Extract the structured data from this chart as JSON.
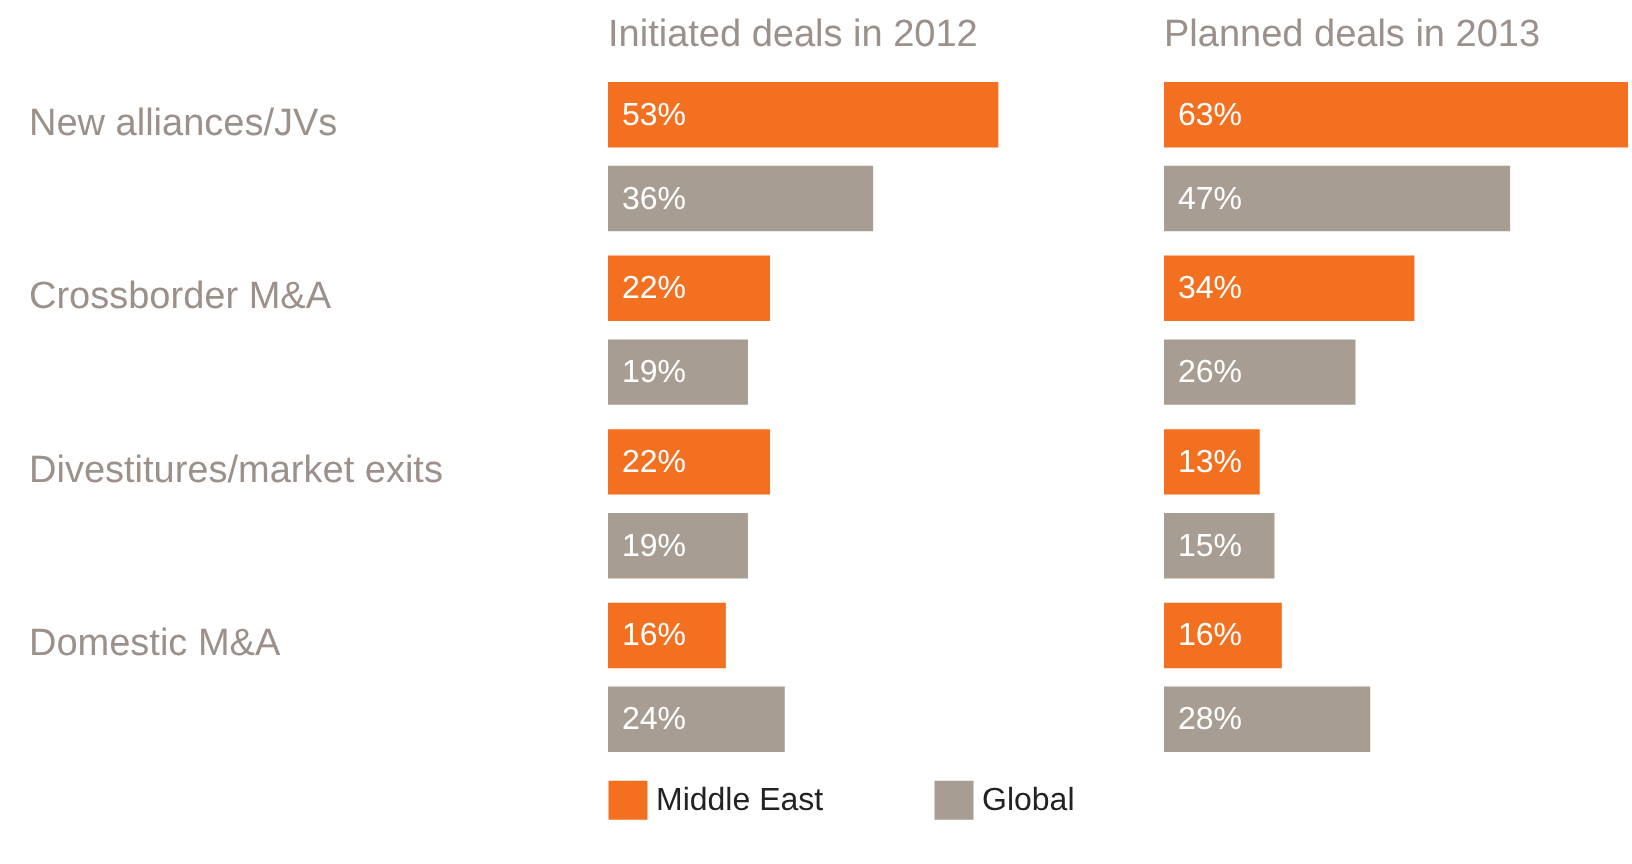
{
  "chart_data": [
    {
      "type": "bar",
      "orientation": "horizontal",
      "title": "Initiated deals in 2012",
      "categories": [
        "New alliances/JVs",
        "Crossborder M&A",
        "Divestitures/market exits",
        "Domestic M&A"
      ],
      "tick_labels": "y",
      "legend": "bottom",
      "series": [
        {
          "name": "Middle East",
          "color": "#f37021",
          "values": [
            53,
            22,
            22,
            16
          ],
          "value_labels": [
            "53%",
            "22%",
            "22%",
            "16%"
          ]
        },
        {
          "name": "Global",
          "color": "#a89d93",
          "values": [
            36,
            19,
            19,
            24
          ],
          "value_labels": [
            "36%",
            "19%",
            "19%",
            "24%"
          ]
        }
      ]
    },
    {
      "type": "bar",
      "orientation": "horizontal",
      "title": "Planned deals in 2013",
      "categories": [
        "New alliances/JVs",
        "Crossborder M&A",
        "Divestitures/market exits",
        "Domestic M&A"
      ],
      "tick_labels": false,
      "series": [
        {
          "name": "Middle East",
          "color": "#f37021",
          "values": [
            63,
            34,
            13,
            16
          ],
          "value_labels": [
            "63%",
            "34%",
            "13%",
            "16%"
          ]
        },
        {
          "name": "Global",
          "color": "#a89d93",
          "values": [
            47,
            26,
            15,
            28
          ],
          "value_labels": [
            "47%",
            "26%",
            "15%",
            "28%"
          ]
        }
      ]
    }
  ]
}
